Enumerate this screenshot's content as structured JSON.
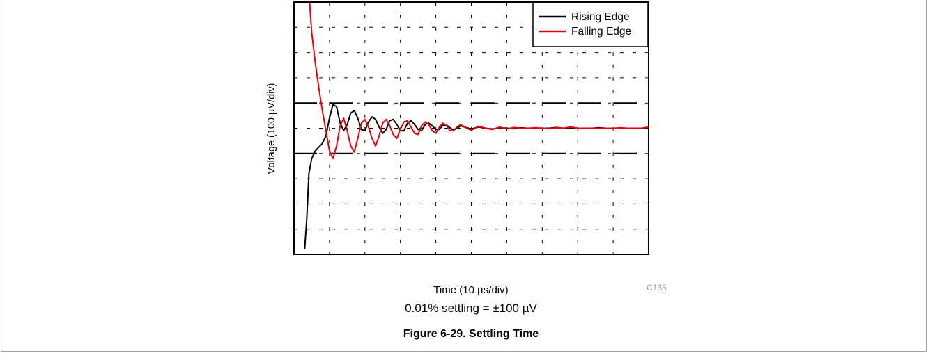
{
  "chart_data": {
    "type": "line",
    "title": "",
    "xlabel": "Time (10 µs/div)",
    "ylabel": "Voltage (100 µV/div)",
    "x_divisions": 10,
    "y_divisions": 10,
    "xlim": [
      0,
      100
    ],
    "ylim": [
      -500,
      500
    ],
    "x_units": "µs",
    "y_units": "µV",
    "grid": true,
    "legend_position": "top-right",
    "limit_lines": [
      100,
      -100
    ],
    "series": [
      {
        "name": "Rising Edge",
        "color": "#000000",
        "x": [
          3,
          3.6,
          4.2,
          5,
          6,
          7,
          8,
          9,
          10,
          11,
          12,
          13,
          14,
          15,
          16,
          17,
          18,
          19,
          20,
          21,
          22,
          23,
          24,
          25,
          26,
          27,
          28,
          29,
          30,
          31,
          32,
          33,
          34,
          35,
          36,
          37,
          38,
          39,
          40,
          41,
          42,
          43,
          44,
          45,
          46,
          47,
          48,
          50,
          52,
          54,
          56,
          58,
          60,
          62,
          64,
          66,
          68,
          70,
          72,
          74,
          76,
          78,
          80,
          82,
          84,
          86,
          88,
          90,
          92,
          94,
          96,
          98,
          100
        ],
        "y": [
          -480,
          -360,
          -180,
          -120,
          -90,
          -75,
          -60,
          -30,
          40,
          95,
          85,
          20,
          -10,
          15,
          60,
          70,
          40,
          -5,
          -10,
          25,
          45,
          35,
          5,
          -20,
          -5,
          30,
          35,
          15,
          -10,
          -10,
          20,
          30,
          15,
          -5,
          -10,
          15,
          20,
          10,
          -5,
          -5,
          12,
          12,
          2,
          -8,
          0,
          10,
          5,
          -3,
          5,
          0,
          -3,
          2,
          0,
          -2,
          2,
          0,
          0,
          0,
          0,
          3,
          0,
          0,
          0,
          0,
          0,
          2,
          0,
          0,
          0,
          0,
          0,
          0,
          0
        ]
      },
      {
        "name": "Falling Edge",
        "color": "#e8000b",
        "x": [
          4.4,
          5,
          6,
          7,
          8,
          9,
          10,
          11,
          12,
          13,
          14,
          15,
          16,
          17,
          18,
          19,
          20,
          21,
          22,
          23,
          24,
          25,
          26,
          27,
          28,
          29,
          30,
          31,
          32,
          33,
          34,
          35,
          36,
          37,
          38,
          39,
          40,
          41,
          42,
          43,
          44,
          45,
          46,
          47,
          48,
          50,
          52,
          54,
          56,
          58,
          60,
          62,
          64,
          66,
          68,
          70,
          72,
          74,
          76,
          78,
          80,
          82,
          84,
          86,
          88,
          90,
          92,
          94,
          96,
          98,
          100
        ],
        "y": [
          500,
          380,
          260,
          160,
          70,
          -10,
          -90,
          -120,
          -70,
          10,
          40,
          -10,
          -70,
          -95,
          -40,
          20,
          35,
          5,
          -40,
          -70,
          -30,
          20,
          35,
          10,
          -25,
          -40,
          -5,
          25,
          30,
          5,
          -20,
          -25,
          10,
          25,
          15,
          -10,
          -20,
          5,
          20,
          10,
          -10,
          -10,
          5,
          15,
          5,
          -8,
          8,
          0,
          -5,
          5,
          -3,
          3,
          0,
          0,
          2,
          0,
          -2,
          2,
          0,
          5,
          0,
          0,
          0,
          0,
          0,
          0,
          2,
          0,
          0,
          0,
          5
        ]
      }
    ]
  },
  "figure_code": "C135",
  "settling_note": "0.01% settling = ±100 µV",
  "caption": "Figure 6-29. Settling Time"
}
